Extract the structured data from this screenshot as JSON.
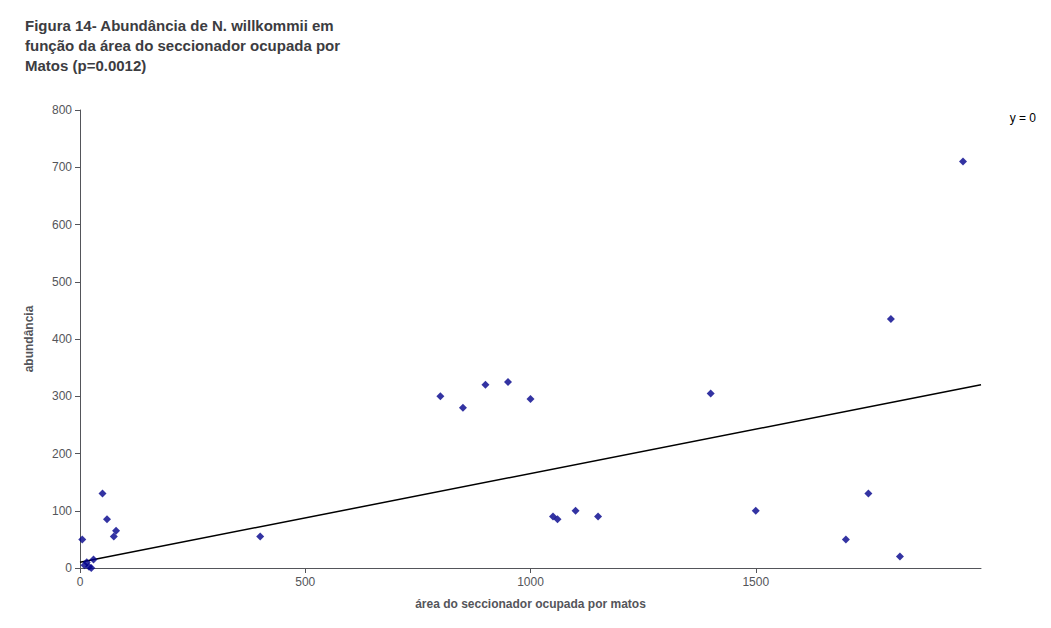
{
  "chart_data": {
    "type": "scatter",
    "title": "Figura 14- Abundância de N. willkommii em\nfunção da área do seccionador ocupada por\nMatos (p=0.0012)",
    "x_label": "área do seccionador ocupada por matos",
    "y_label": "abundância",
    "annotations": [
      "y = 0"
    ],
    "xlim": [
      0,
      2000
    ],
    "ylim": [
      0,
      800
    ],
    "xticks": [
      0,
      500,
      1000,
      1500
    ],
    "yticks": [
      0,
      100,
      200,
      300,
      400,
      500,
      600,
      700,
      800
    ],
    "grid": false,
    "series": [
      {
        "type": "scatter",
        "color": "#00008B",
        "marker": "diamond",
        "x": [
          5,
          10,
          15,
          20,
          25,
          30,
          50,
          60,
          75,
          80,
          400,
          800,
          850,
          900,
          950,
          1000,
          1050,
          1060,
          1100,
          1150,
          1400,
          1500,
          1700,
          1750,
          1800,
          1820,
          1960
        ],
        "values": [
          50,
          5,
          10,
          2,
          0,
          15,
          130,
          85,
          55,
          65,
          55,
          300,
          280,
          320,
          325,
          295,
          90,
          85,
          100,
          90,
          305,
          100,
          50,
          130,
          435,
          20,
          710
        ]
      },
      {
        "type": "line",
        "color": "#000000",
        "line_style": "solid",
        "x": [
          0,
          2000
        ],
        "values": [
          10,
          320
        ]
      }
    ]
  }
}
